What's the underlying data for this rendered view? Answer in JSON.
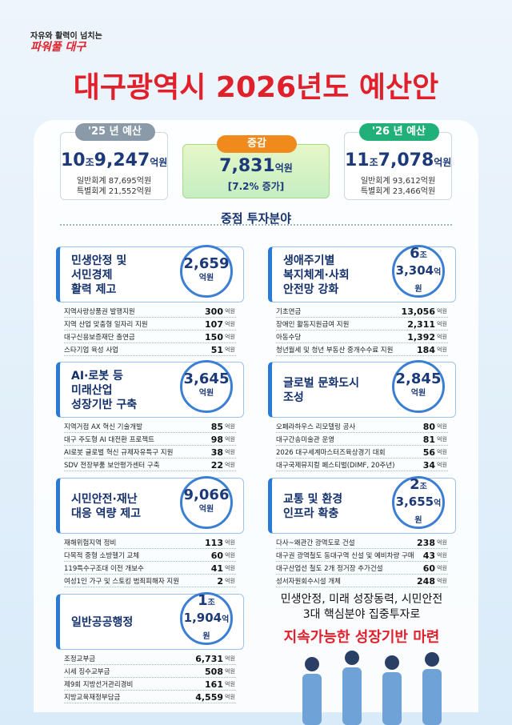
{
  "header": {
    "slogan_top": "자유와 활력이 넘치는",
    "slogan_main": "파워풀 대구",
    "title": "대구광역시 2026년도 예산안"
  },
  "summary": {
    "prev": {
      "label": "'25 년 예산",
      "amount": [
        "10",
        "조",
        "9,247",
        "억원"
      ],
      "general": "일반회계 87,695억원",
      "special": "특별회계 21,552억원"
    },
    "change": {
      "label": "증감",
      "amount": [
        "7,831",
        "억원"
      ],
      "rate": "[7.2% 증가]"
    },
    "next": {
      "label": "'26 년 예산",
      "amount": [
        "11",
        "조",
        "7,078",
        "억원"
      ],
      "general": "일반회계 93,612억원",
      "special": "특별회계 23,466억원"
    }
  },
  "focus_title": "중점 투자분야",
  "sections": [
    {
      "title": [
        "민생안정 및",
        "서민경제",
        "활력 제고"
      ],
      "total": [
        "2,659",
        "억원"
      ],
      "items": [
        [
          "지역사랑상품권 발행지원",
          "300",
          "억원"
        ],
        [
          "지역 산업 맞춤형 일자리 지원",
          "107",
          "억원"
        ],
        [
          "대구신용보증재단 출연금",
          "150",
          "억원"
        ],
        [
          "스타기업 육성 사업",
          "51",
          "억원"
        ]
      ]
    },
    {
      "title": [
        "생애주기별",
        "복지체계·사회",
        "안전망 강화"
      ],
      "total": [
        "6",
        "조",
        "3,304",
        "억원"
      ],
      "items": [
        [
          "기초연금",
          "13,056",
          "억원"
        ],
        [
          "장애인 활동지원급여 지원",
          "2,311",
          "억원"
        ],
        [
          "아동수당",
          "1,392",
          "억원"
        ],
        [
          "청년월세 및 청년 부동산 중개수수료 지원",
          "184",
          "억원"
        ]
      ]
    },
    {
      "title": [
        "AI·로봇 등",
        "미래산업",
        "성장기반 구축"
      ],
      "total": [
        "3,645",
        "억원"
      ],
      "items": [
        [
          "지역거점 AX 혁신 기술개발",
          "85",
          "억원"
        ],
        [
          "대구 주도형 AI 대전환 프로젝트",
          "98",
          "억원"
        ],
        [
          "AI로봇 글로벌 혁신 규제자유특구 지원",
          "38",
          "억원"
        ],
        [
          "SDV 전장부품 보안평가센터 구축",
          "22",
          "억원"
        ]
      ]
    },
    {
      "title": [
        "글로벌 문화도시",
        "조성"
      ],
      "total": [
        "2,845",
        "억원"
      ],
      "items": [
        [
          "오페라하우스 리모델링 공사",
          "80",
          "억원"
        ],
        [
          "대구간송미술관 운영",
          "81",
          "억원"
        ],
        [
          "2026 대구세계마스터즈육상경기 대회",
          "56",
          "억원"
        ],
        [
          "대구국제뮤지컬 페스티벌(DIMF, 20주년)",
          "34",
          "억원"
        ]
      ]
    },
    {
      "title": [
        "시민안전·재난",
        "대응 역량 제고"
      ],
      "total": [
        "9,066",
        "억원"
      ],
      "items": [
        [
          "재해위험지역 정비",
          "113",
          "억원"
        ],
        [
          "다목적 중형 소방헬기 교체",
          "60",
          "억원"
        ],
        [
          "119특수구조대 이전 개보수",
          "41",
          "억원"
        ],
        [
          "여성1인 가구 및 스토킹 범죄피해자 지원",
          "2",
          "억원"
        ]
      ]
    },
    {
      "title": [
        "교통 및 환경",
        "인프라 확충"
      ],
      "total": [
        "2",
        "조",
        "3,655",
        "억원"
      ],
      "items": [
        [
          "다사~왜관간 광역도로 건설",
          "238",
          "억원"
        ],
        [
          "대구권 광역철도 동대구역 신설 및 예비차량 구매",
          "43",
          "억원"
        ],
        [
          "대구산업선 철도 2개 정거장 추가건설",
          "60",
          "억원"
        ],
        [
          "성서자원회수시설 개체",
          "248",
          "억원"
        ]
      ]
    },
    {
      "title": [
        "일반공공행정"
      ],
      "total": [
        "1",
        "조",
        "1,904",
        "억원"
      ],
      "items": [
        [
          "조정교부금",
          "6,731",
          "억원"
        ],
        [
          "시세 징수교부금",
          "508",
          "억원"
        ],
        [
          "제9회 지방선거관리경비",
          "161",
          "억원"
        ],
        [
          "지방교육재정부담금",
          "4,559",
          "억원"
        ]
      ]
    }
  ],
  "message": {
    "lines": [
      "민생안정, 미래 성장동력, 시민안전",
      "3대 핵심분야 집중투자로"
    ],
    "highlight": "지속가능한 성장기반 마련"
  }
}
